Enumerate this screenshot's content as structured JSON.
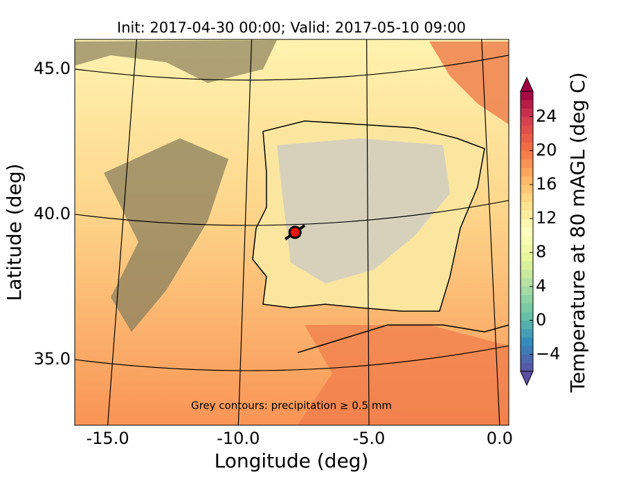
{
  "chart_data": {
    "type": "map",
    "title": "Init: 2017-04-30 00:00; Valid: 2017-05-10 09:00",
    "xlabel": "Longitude (deg)",
    "ylabel": "Latitude (deg)",
    "xlim": [
      -16.26,
      0.35
    ],
    "ylim": [
      32.74,
      46.02
    ],
    "xticks": [
      {
        "value": -15,
        "label": "-15.0"
      },
      {
        "value": -10,
        "label": "-10.0"
      },
      {
        "value": -5,
        "label": "-5.0"
      },
      {
        "value": 0,
        "label": "0.0"
      }
    ],
    "yticks": [
      {
        "value": 35,
        "label": "35.0"
      },
      {
        "value": 40,
        "label": "40.0"
      },
      {
        "value": 45,
        "label": "45.0"
      }
    ],
    "grid": true,
    "annotation": "Grey contours: precipitation ≥ 0.5 mm",
    "point": {
      "lon": -7.83,
      "lat": 39.38,
      "color": "#ee1111"
    },
    "colorbar": {
      "label": "Temperature at 80 mAGL (deg C)",
      "lim": [
        -6,
        27
      ],
      "ticks": [
        {
          "value": -4,
          "label": "−4"
        },
        0,
        4,
        8,
        12,
        16,
        20,
        24
      ],
      "colors": [
        "#5e4fa2",
        "#3288bd",
        "#66c2a5",
        "#abdda4",
        "#e6f598",
        "#ffffbf",
        "#fee08b",
        "#fdae61",
        "#f46d43",
        "#d53e4f",
        "#9e0142"
      ]
    }
  }
}
